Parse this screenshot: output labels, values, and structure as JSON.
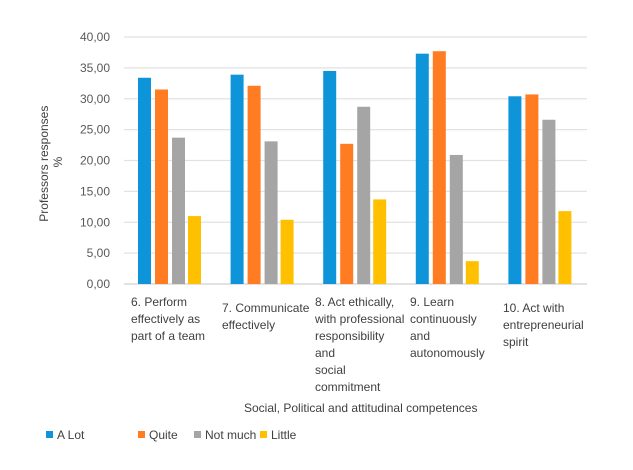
{
  "chart_data": {
    "type": "bar",
    "title": "",
    "xlabel": "Social, Political and attitudinal competences",
    "ylabel_lines": [
      "Professors responses",
      "%"
    ],
    "ylim": [
      0,
      40
    ],
    "yticks": [
      "0,00",
      "5,00",
      "10,00",
      "15,00",
      "20,00",
      "25,00",
      "30,00",
      "35,00",
      "40,00"
    ],
    "ytick_values": [
      0,
      5,
      10,
      15,
      20,
      25,
      30,
      35,
      40
    ],
    "grid": true,
    "legend_position": "bottom-left",
    "categories": [
      "6. Perform effectively as part of a team",
      "7. Communicate effectively",
      "8. Act ethically, with professional responsibility and social commitment",
      "9. Learn continuously and autonomously",
      "10. Act with entrepreneurial spirit"
    ],
    "category_lines": [
      [
        "6. Perform",
        "effectively as",
        "part of a team"
      ],
      [
        "7. Communicate",
        "effectively"
      ],
      [
        "8. Act ethically,",
        "with professional",
        "responsibility and",
        "social",
        "commitment"
      ],
      [
        "9. Learn",
        "continuously",
        "and",
        "autonomously"
      ],
      [
        "10. Act with",
        "entrepreneurial",
        "spirit"
      ]
    ],
    "series": [
      {
        "name": "A Lot",
        "color": "#0E95D9",
        "values": [
          33.4,
          33.9,
          34.5,
          37.3,
          30.4
        ]
      },
      {
        "name": "Quite",
        "color": "#FF7C22",
        "values": [
          31.5,
          32.1,
          22.7,
          37.7,
          30.7
        ]
      },
      {
        "name": "Not much",
        "color": "#A5A5A5",
        "values": [
          23.7,
          23.1,
          28.7,
          20.9,
          26.6
        ]
      },
      {
        "name": "Little",
        "color": "#FFC000",
        "values": [
          11.0,
          10.4,
          13.7,
          3.7,
          11.8
        ]
      }
    ]
  }
}
